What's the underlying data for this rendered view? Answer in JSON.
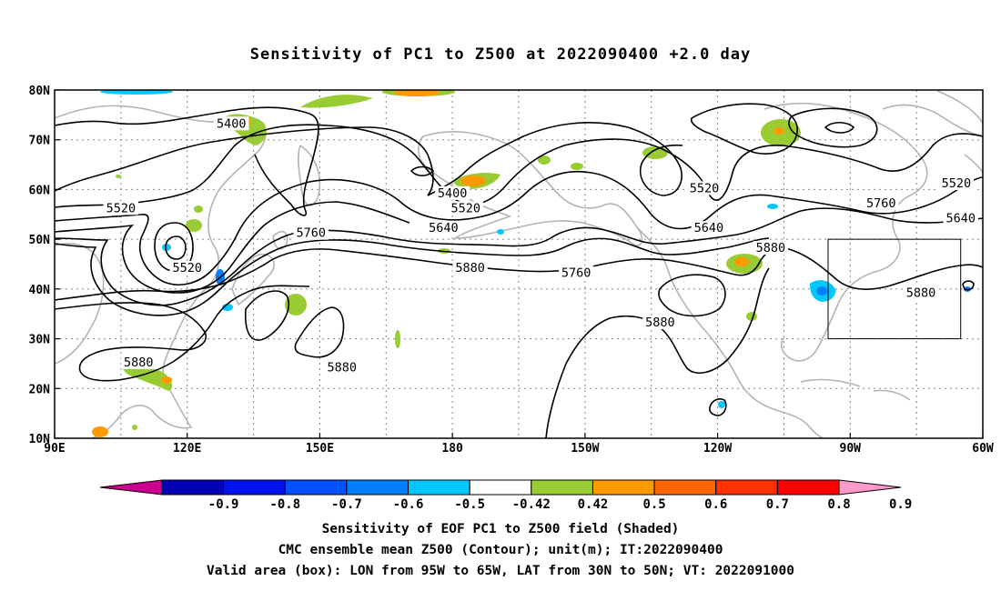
{
  "title": "Sensitivity of PC1 to Z500 at 2022090400 +2.0 day",
  "map": {
    "lon_range": [
      90,
      300
    ],
    "lat_range": [
      10,
      80
    ],
    "lon_ticks": [
      {
        "value": 90,
        "label": "90E"
      },
      {
        "value": 120,
        "label": "120E"
      },
      {
        "value": 150,
        "label": "150E"
      },
      {
        "value": 180,
        "label": "180"
      },
      {
        "value": 210,
        "label": "150W"
      },
      {
        "value": 240,
        "label": "120W"
      },
      {
        "value": 270,
        "label": "90W"
      },
      {
        "value": 300,
        "label": "60W"
      }
    ],
    "lat_ticks": [
      {
        "value": 10,
        "label": "10N"
      },
      {
        "value": 20,
        "label": "20N"
      },
      {
        "value": 30,
        "label": "30N"
      },
      {
        "value": 40,
        "label": "40N"
      },
      {
        "value": 50,
        "label": "50N"
      },
      {
        "value": 60,
        "label": "60N"
      },
      {
        "value": 70,
        "label": "70N"
      },
      {
        "value": 80,
        "label": "80N"
      }
    ],
    "gridlines": true,
    "valid_box": {
      "lon": [
        265,
        295
      ],
      "lat": [
        30,
        50
      ]
    }
  },
  "contours": {
    "levels": [
      5400,
      5520,
      5640,
      5760,
      5880
    ],
    "labels": [
      {
        "text": "5400",
        "lon": 130,
        "lat": 73
      },
      {
        "text": "5400",
        "lon": 180,
        "lat": 59
      },
      {
        "text": "5520",
        "lon": 105,
        "lat": 56
      },
      {
        "text": "5520",
        "lon": 120,
        "lat": 44
      },
      {
        "text": "5520",
        "lon": 183,
        "lat": 56
      },
      {
        "text": "5520",
        "lon": 237,
        "lat": 60
      },
      {
        "text": "5520",
        "lon": 294,
        "lat": 61
      },
      {
        "text": "5640",
        "lon": 178,
        "lat": 52
      },
      {
        "text": "5640",
        "lon": 238,
        "lat": 52
      },
      {
        "text": "5640",
        "lon": 295,
        "lat": 54
      },
      {
        "text": "5760",
        "lon": 148,
        "lat": 51
      },
      {
        "text": "5760",
        "lon": 208,
        "lat": 43
      },
      {
        "text": "5760",
        "lon": 277,
        "lat": 57
      },
      {
        "text": "5880",
        "lon": 184,
        "lat": 44
      },
      {
        "text": "5880",
        "lon": 252,
        "lat": 48
      },
      {
        "text": "5880",
        "lon": 227,
        "lat": 33
      },
      {
        "text": "5880",
        "lon": 286,
        "lat": 39
      },
      {
        "text": "5880",
        "lon": 109,
        "lat": 25
      },
      {
        "text": "5880",
        "lon": 155,
        "lat": 24
      }
    ]
  },
  "colorbar": {
    "labels": [
      "-0.9",
      "-0.8",
      "-0.7",
      "-0.6",
      "-0.5",
      "-0.42",
      "0.42",
      "0.5",
      "0.6",
      "0.7",
      "0.8",
      "0.9"
    ],
    "colors": [
      "#c8008c",
      "#0000b4",
      "#0014f0",
      "#0050ff",
      "#0080ff",
      "#00c8ff",
      "#ffffff",
      "#99cc33",
      "#ff9900",
      "#ff6600",
      "#ff3300",
      "#ff0000",
      "#ff99cc"
    ]
  },
  "captions": {
    "line1": "Sensitivity of EOF PC1 to Z500 field (Shaded)",
    "line2": "CMC ensemble mean Z500 (Contour); unit(m); IT:2022090400",
    "line3": "Valid area (box): LON from 95W to 65W, LAT from 30N to 50N; VT: 2022091000"
  }
}
